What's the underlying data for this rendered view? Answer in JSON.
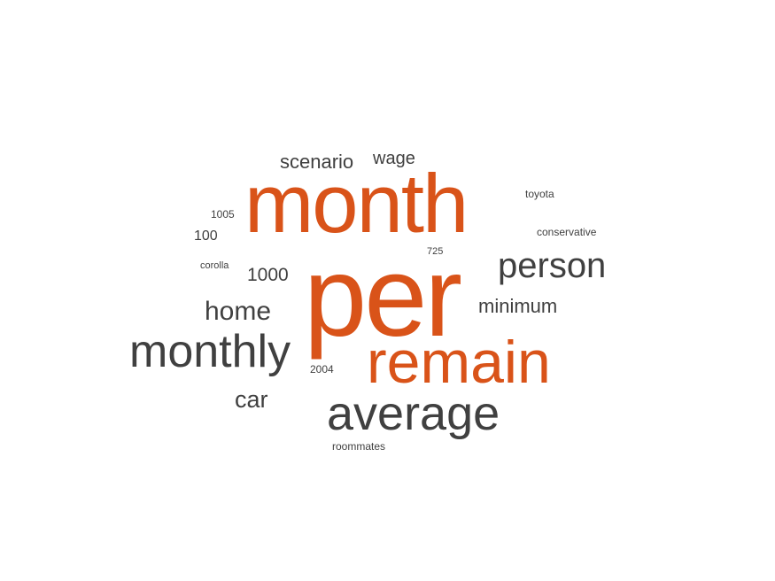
{
  "word_cloud": {
    "colors": {
      "accent": "#d95319",
      "neutral": "#404040",
      "background": "#ffffff"
    },
    "words": [
      {
        "key": "per",
        "text": "per",
        "color": "accent"
      },
      {
        "key": "month",
        "text": "month",
        "color": "accent"
      },
      {
        "key": "remain",
        "text": "remain",
        "color": "accent"
      },
      {
        "key": "average",
        "text": "average",
        "color": "neutral"
      },
      {
        "key": "monthly",
        "text": "monthly",
        "color": "neutral"
      },
      {
        "key": "person",
        "text": "person",
        "color": "neutral"
      },
      {
        "key": "home",
        "text": "home",
        "color": "neutral"
      },
      {
        "key": "car",
        "text": "car",
        "color": "neutral"
      },
      {
        "key": "scenario",
        "text": "scenario",
        "color": "neutral"
      },
      {
        "key": "wage",
        "text": "wage",
        "color": "neutral"
      },
      {
        "key": "minimum",
        "text": "minimum",
        "color": "neutral"
      },
      {
        "key": "1000",
        "text": "1000",
        "color": "neutral"
      },
      {
        "key": "100",
        "text": "100",
        "color": "neutral"
      },
      {
        "key": "1005",
        "text": "1005",
        "color": "neutral"
      },
      {
        "key": "corolla",
        "text": "corolla",
        "color": "neutral"
      },
      {
        "key": "toyota",
        "text": "toyota",
        "color": "neutral"
      },
      {
        "key": "conservative",
        "text": "conservative",
        "color": "neutral"
      },
      {
        "key": "725",
        "text": "725",
        "color": "neutral"
      },
      {
        "key": "2004",
        "text": "2004",
        "color": "neutral"
      },
      {
        "key": "roommates",
        "text": "roommates",
        "color": "neutral"
      }
    ]
  }
}
